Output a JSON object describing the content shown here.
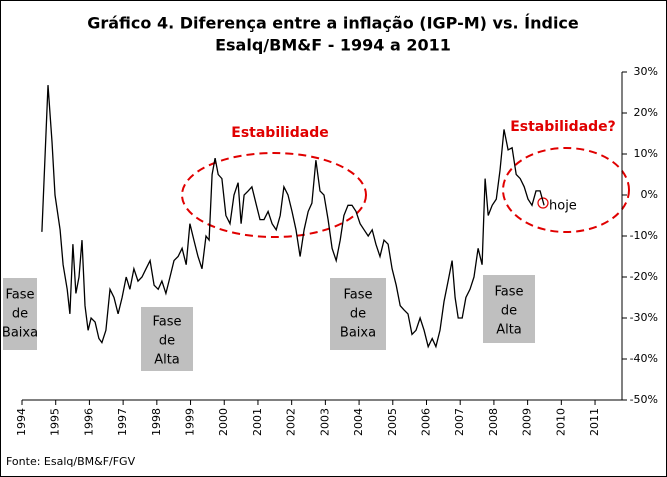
{
  "chart_data": {
    "type": "line",
    "title": [
      "Gráfico 4. Diferença entre a inflação (IGP-M) vs. Índice",
      "Esalq/BM&F - 1994 a 2011"
    ],
    "source": "Fonte: Esalq/BM&F/FGV",
    "xlim": [
      1994,
      2011.8
    ],
    "xticks": [
      1994,
      1995,
      1996,
      1997,
      1998,
      1999,
      2000,
      2001,
      2002,
      2003,
      2004,
      2005,
      2006,
      2007,
      2008,
      2009,
      2010,
      2011
    ],
    "ylim": [
      -50,
      30
    ],
    "yticks": [
      {
        "value": 30,
        "label": "30%"
      },
      {
        "value": 20,
        "label": "20%"
      },
      {
        "value": 10,
        "label": "10%"
      },
      {
        "value": 0,
        "label": "0%"
      },
      {
        "value": -10,
        "label": "-10%"
      },
      {
        "value": -20,
        "label": "-20%"
      },
      {
        "value": -30,
        "label": "-30%"
      },
      {
        "value": -40,
        "label": "-40%"
      },
      {
        "value": -50,
        "label": "-50%"
      }
    ],
    "color": "#000000",
    "x": [
      1994.59,
      1994.77,
      1994.89,
      1994.98,
      1995.13,
      1995.22,
      1995.34,
      1995.42,
      1995.51,
      1995.6,
      1995.69,
      1995.78,
      1995.87,
      1995.96,
      1996.05,
      1996.17,
      1996.28,
      1996.37,
      1996.49,
      1996.61,
      1996.73,
      1996.85,
      1996.97,
      1997.09,
      1997.2,
      1997.32,
      1997.44,
      1997.56,
      1997.68,
      1997.8,
      1997.92,
      1998.04,
      1998.15,
      1998.27,
      1998.39,
      1998.51,
      1998.63,
      1998.75,
      1998.87,
      1998.98,
      1999.1,
      1999.22,
      1999.34,
      1999.46,
      1999.55,
      1999.64,
      1999.73,
      1999.82,
      1999.93,
      2000.05,
      2000.17,
      2000.29,
      2000.41,
      2000.5,
      2000.59,
      2000.71,
      2000.82,
      2000.94,
      2001.06,
      2001.18,
      2001.3,
      2001.42,
      2001.54,
      2001.66,
      2001.77,
      2001.89,
      2002.01,
      2002.13,
      2002.25,
      2002.37,
      2002.49,
      2002.6,
      2002.72,
      2002.84,
      2002.96,
      2003.08,
      2003.2,
      2003.32,
      2003.44,
      2003.55,
      2003.67,
      2003.79,
      2003.91,
      2004.03,
      2004.15,
      2004.27,
      2004.39,
      2004.5,
      2004.62,
      2004.74,
      2004.86,
      2004.98,
      2005.1,
      2005.22,
      2005.33,
      2005.45,
      2005.57,
      2005.69,
      2005.81,
      2005.93,
      2006.05,
      2006.17,
      2006.28,
      2006.4,
      2006.52,
      2006.64,
      2006.76,
      2006.85,
      2006.94,
      2007.06,
      2007.17,
      2007.29,
      2007.41,
      2007.53,
      2007.65,
      2007.74,
      2007.83,
      2007.95,
      2008.07,
      2008.18,
      2008.3,
      2008.42,
      2008.54,
      2008.66,
      2008.78,
      2008.9,
      2009.01,
      2009.13,
      2009.25,
      2009.37,
      2009.49
    ],
    "values": [
      -9,
      26.8,
      13,
      0,
      -8.5,
      -17,
      -23,
      -29,
      -12,
      -24,
      -20,
      -11,
      -27,
      -33,
      -30,
      -31,
      -35,
      -36,
      -33,
      -23,
      -25,
      -29,
      -25,
      -20,
      -23,
      -18,
      -21,
      -20,
      -18,
      -16,
      -22,
      -23,
      -21,
      -24,
      -20,
      -16,
      -15,
      -13,
      -17,
      -7,
      -11,
      -15,
      -18,
      -10,
      -11,
      5,
      9,
      5,
      4,
      -5,
      -7,
      0,
      3,
      -7,
      0,
      1,
      2,
      -2,
      -6,
      -6,
      -4,
      -7,
      -8.5,
      -5,
      2,
      0,
      -4,
      -8.5,
      -15,
      -8.5,
      -4,
      -2,
      8.5,
      1,
      0,
      -6,
      -13,
      -16,
      -11,
      -5,
      -2.5,
      -2.5,
      -4,
      -7,
      -8.5,
      -10,
      -8.5,
      -12,
      -15,
      -11,
      -12,
      -18,
      -22,
      -27,
      -28,
      -29,
      -34,
      -33,
      -30,
      -33,
      -37,
      -35,
      -37,
      -33,
      -26,
      -21,
      -16,
      -25,
      -30,
      -30,
      -25,
      -23,
      -20,
      -13,
      -17,
      4,
      -5,
      -2.5,
      -1,
      6,
      16,
      11,
      11.5,
      5,
      4,
      2,
      -1,
      -2.5,
      1,
      1,
      -2.5
    ],
    "annotations": [
      {
        "text": "Estabilidade"
      },
      {
        "text": "Estabilidade?"
      },
      {
        "text": "hoje"
      },
      {
        "lines": [
          "Fase",
          "de",
          "Baixa"
        ]
      },
      {
        "lines": [
          "Fase",
          "de",
          "Alta"
        ]
      },
      {
        "lines": [
          "Fase",
          "de",
          "Baixa"
        ]
      },
      {
        "lines": [
          "Fase",
          "de",
          "Alta"
        ]
      }
    ]
  }
}
